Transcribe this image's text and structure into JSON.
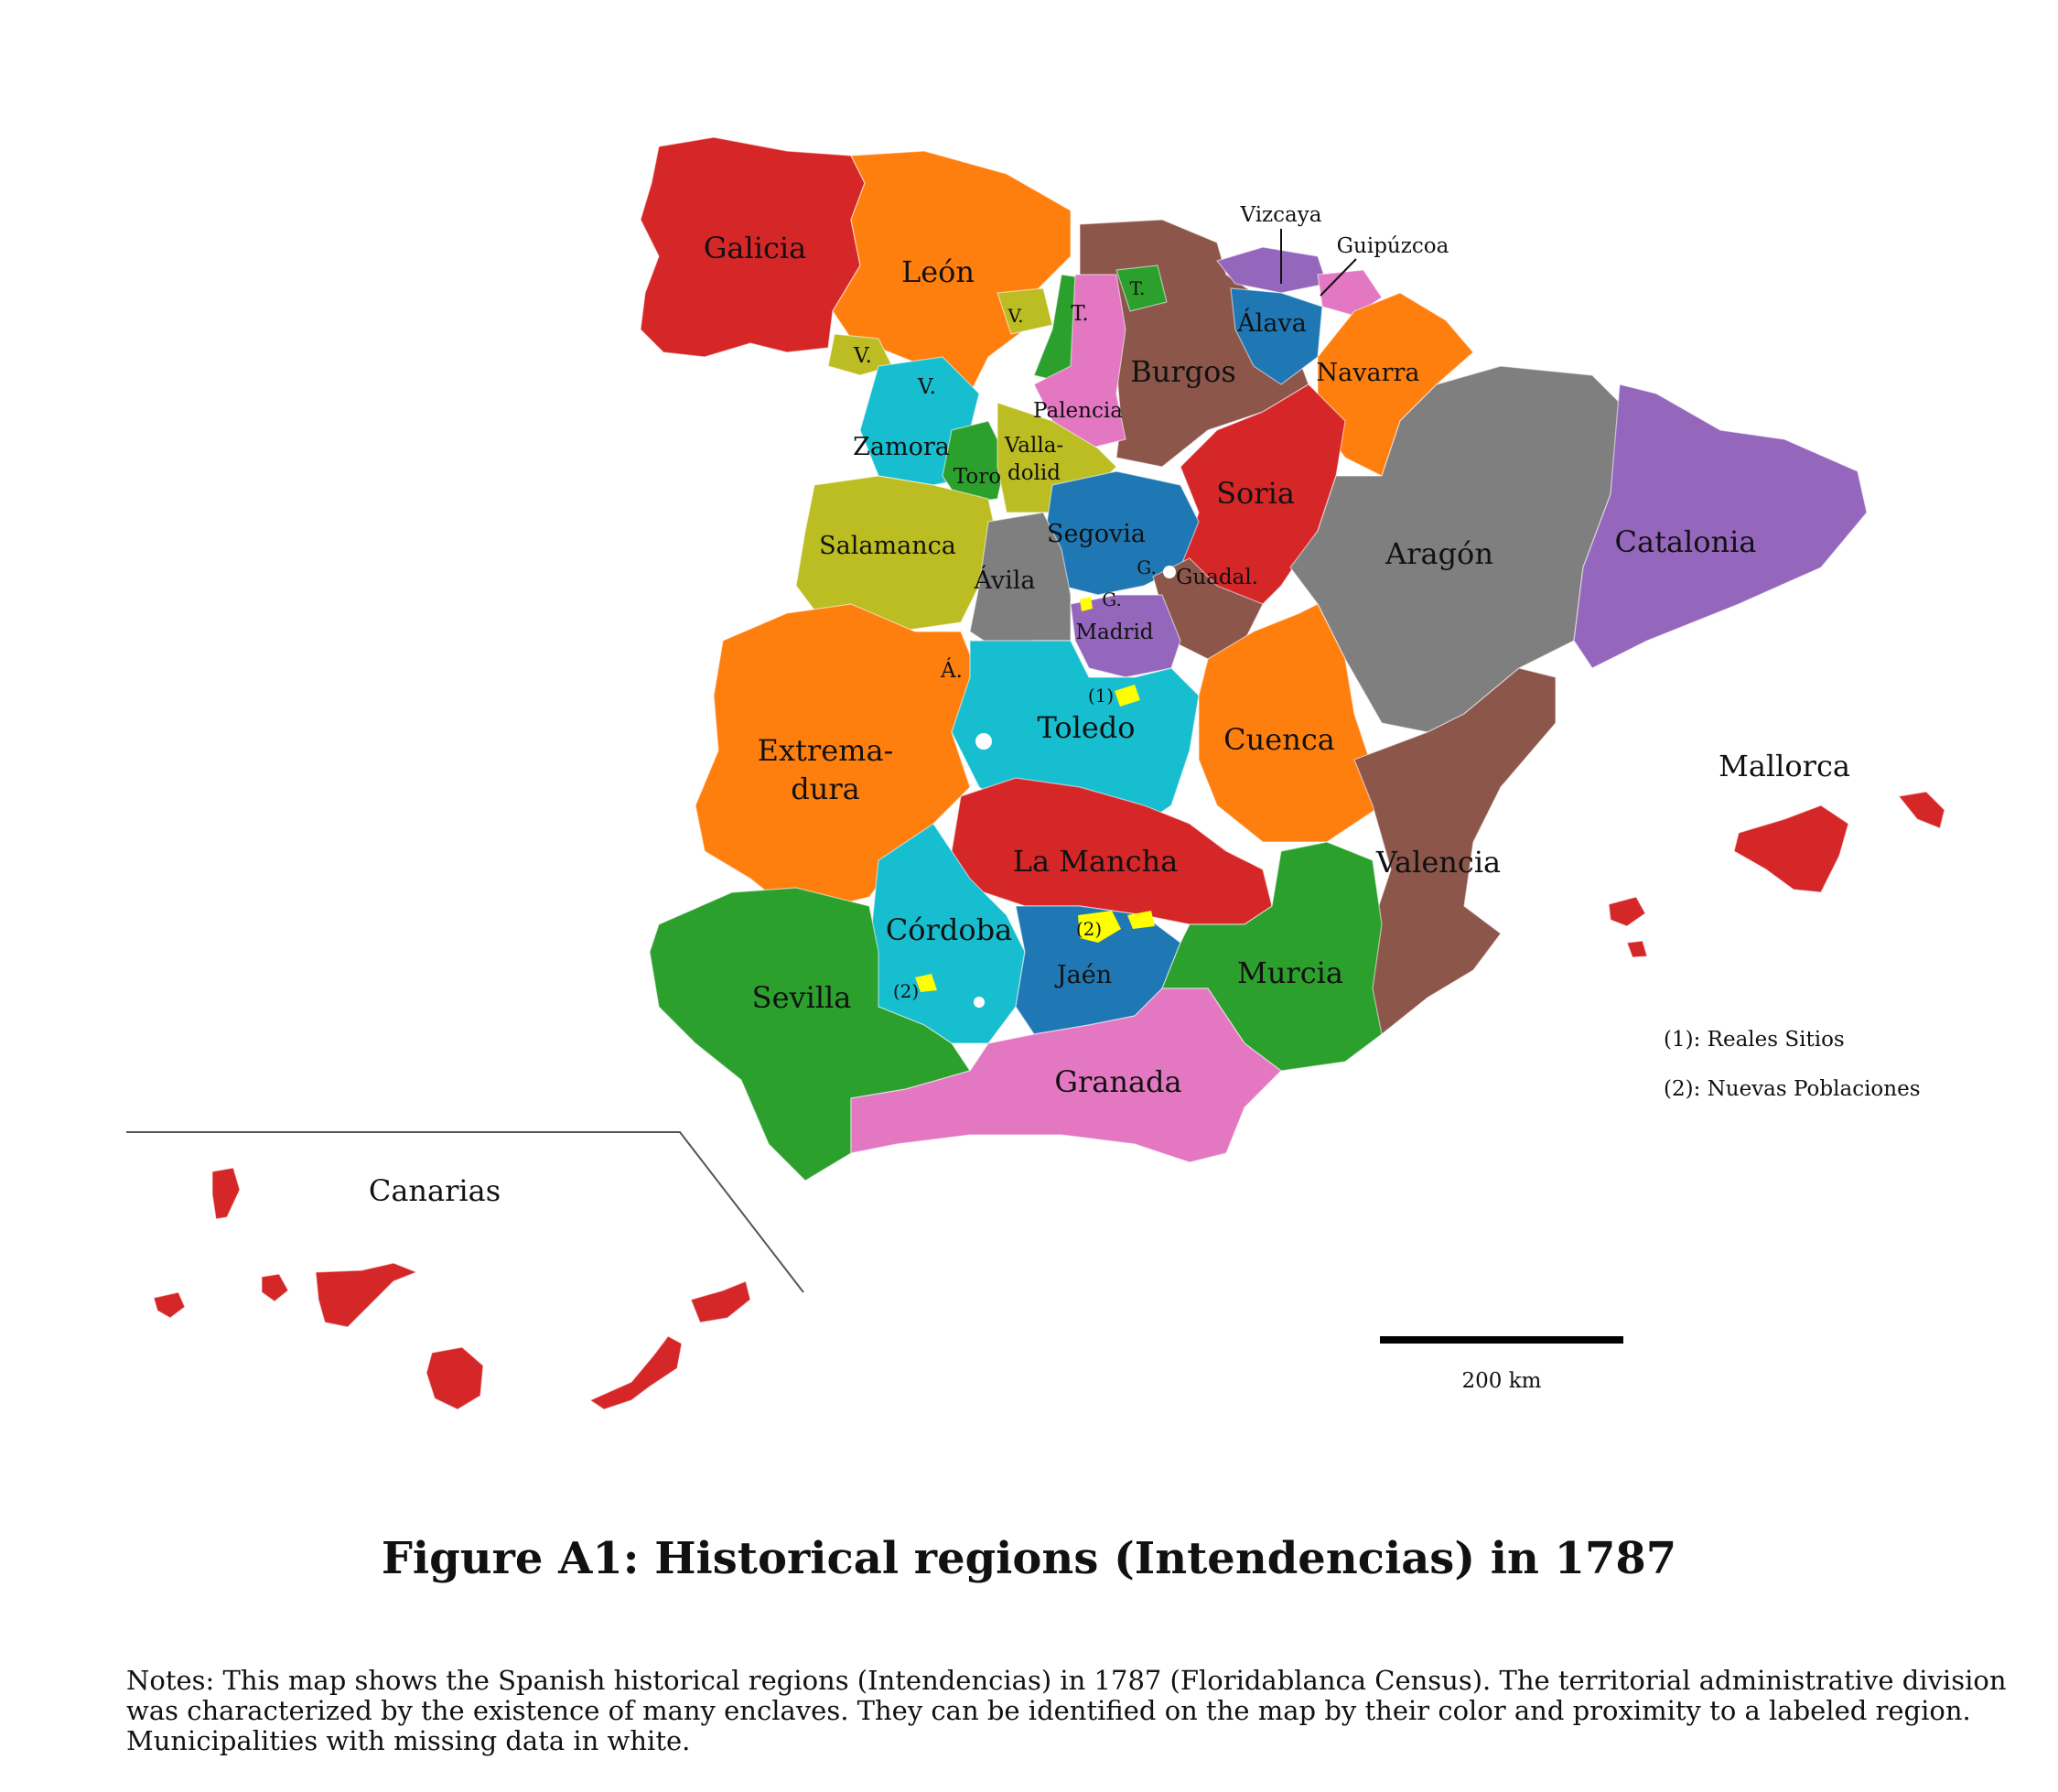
{
  "caption": "Figure A1: Historical regions (Intendencias) in 1787",
  "notes": "Notes: This map shows the Spanish historical regions (Intendencias) in 1787 (Floridablanca Census). The territorial administrative division was characterized by the existence of many enclaves. They can be identified on the map by their color and proximity to a labeled region. Municipalities with missing data in white.",
  "scale_bar": {
    "label": "200 km",
    "km": 200
  },
  "legend": {
    "items": [
      {
        "key": "(1)",
        "text": "(1): Reales Sitios"
      },
      {
        "key": "(2)",
        "text": "(2): Nuevas Poblaciones"
      }
    ]
  },
  "colors": {
    "red": "#d62728",
    "orange": "#ff7f0e",
    "brown": "#8c564b",
    "olive": "#bcbd22",
    "cyan": "#17becf",
    "green": "#2ca02c",
    "pink": "#e377c2",
    "purple": "#9467bd",
    "blue": "#1f77b4",
    "gray": "#7f7f7f",
    "yellow": "#ffff00"
  },
  "regions": {
    "galicia": "Galicia",
    "leon": "León",
    "burgos": "Burgos",
    "vizcaya": "Vizcaya",
    "guipuzcoa": "Guipúzcoa",
    "alava": "Álava",
    "navarra": "Navarra",
    "palencia": "Palencia",
    "zamora": "Zamora",
    "valladolid_1": "Valla-",
    "valladolid_2": "dolid",
    "toro": "Toro",
    "soria": "Soria",
    "aragon": "Aragón",
    "catalonia": "Catalonia",
    "salamanca": "Salamanca",
    "segovia": "Segovia",
    "avila": "Ávila",
    "guadalajara": "Guadal.",
    "madrid": "Madrid",
    "extremadura_1": "Extrema-",
    "extremadura_2": "dura",
    "toledo": "Toledo",
    "cuenca": "Cuenca",
    "la_mancha": "La Mancha",
    "valencia": "Valencia",
    "cordoba": "Córdoba",
    "sevilla": "Sevilla",
    "jaen": "Jaén",
    "murcia": "Murcia",
    "granada": "Granada",
    "mallorca": "Mallorca",
    "canarias": "Canarias"
  },
  "enclave_labels": {
    "v_leon": "V.",
    "v_galicia": "V.",
    "v_zamora": "V.",
    "t_leon": "T.",
    "t_burgos": "T.",
    "g_segovia": "G.",
    "g_madrid": "G.",
    "a_extremadura": "Á.",
    "reales_sitios": "(1)",
    "nuevas_jaen": "(2)",
    "nuevas_cordoba": "(2)"
  }
}
